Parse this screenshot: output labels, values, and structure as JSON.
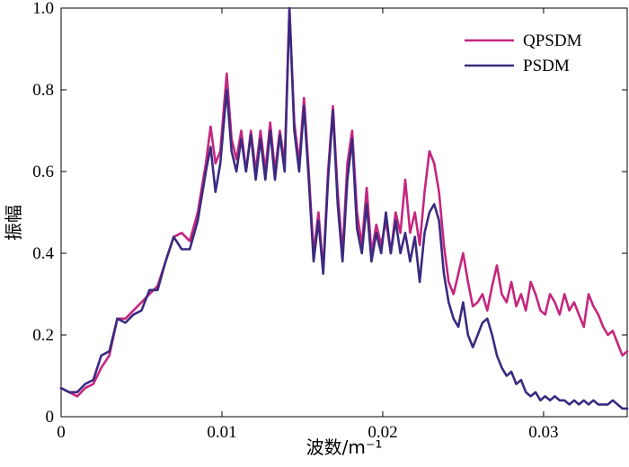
{
  "chart_data": {
    "type": "line",
    "title": "",
    "xlabel": "波数/m⁻¹",
    "ylabel": "振幅",
    "xlim": [
      0,
      0.0352
    ],
    "ylim": [
      0,
      1.0
    ],
    "xticks": [
      0,
      0.01,
      0.02,
      0.03
    ],
    "xtick_labels": [
      "0",
      "0.01",
      "0.02",
      "0.03"
    ],
    "yticks": [
      0,
      0.2,
      0.4,
      0.6,
      0.8,
      1.0
    ],
    "ytick_labels": [
      "0",
      "0.2",
      "0.4",
      "0.6",
      "0.8",
      "1.0"
    ],
    "grid": false,
    "legend_position": "top-right",
    "series": [
      {
        "name": "QPSDM",
        "color": "#c4267f",
        "points": [
          [
            0.0,
            0.07
          ],
          [
            0.0005,
            0.06
          ],
          [
            0.001,
            0.05
          ],
          [
            0.0015,
            0.07
          ],
          [
            0.002,
            0.08
          ],
          [
            0.0025,
            0.12
          ],
          [
            0.003,
            0.15
          ],
          [
            0.0035,
            0.24
          ],
          [
            0.004,
            0.24
          ],
          [
            0.0045,
            0.26
          ],
          [
            0.005,
            0.28
          ],
          [
            0.0055,
            0.3
          ],
          [
            0.006,
            0.32
          ],
          [
            0.0065,
            0.38
          ],
          [
            0.007,
            0.44
          ],
          [
            0.0075,
            0.45
          ],
          [
            0.008,
            0.43
          ],
          [
            0.0085,
            0.5
          ],
          [
            0.009,
            0.62
          ],
          [
            0.0093,
            0.71
          ],
          [
            0.0096,
            0.62
          ],
          [
            0.0099,
            0.65
          ],
          [
            0.0103,
            0.84
          ],
          [
            0.0106,
            0.68
          ],
          [
            0.0109,
            0.63
          ],
          [
            0.0112,
            0.7
          ],
          [
            0.0115,
            0.6
          ],
          [
            0.0118,
            0.7
          ],
          [
            0.0121,
            0.6
          ],
          [
            0.0124,
            0.7
          ],
          [
            0.0127,
            0.6
          ],
          [
            0.013,
            0.72
          ],
          [
            0.0133,
            0.6
          ],
          [
            0.0136,
            0.7
          ],
          [
            0.0139,
            0.62
          ],
          [
            0.0142,
            1.0
          ],
          [
            0.0145,
            0.72
          ],
          [
            0.0148,
            0.62
          ],
          [
            0.0151,
            0.78
          ],
          [
            0.0154,
            0.6
          ],
          [
            0.0157,
            0.4
          ],
          [
            0.016,
            0.5
          ],
          [
            0.0163,
            0.36
          ],
          [
            0.0166,
            0.6
          ],
          [
            0.0169,
            0.76
          ],
          [
            0.0172,
            0.55
          ],
          [
            0.0175,
            0.4
          ],
          [
            0.0178,
            0.62
          ],
          [
            0.0181,
            0.7
          ],
          [
            0.0184,
            0.5
          ],
          [
            0.0187,
            0.42
          ],
          [
            0.019,
            0.56
          ],
          [
            0.0193,
            0.4
          ],
          [
            0.0196,
            0.47
          ],
          [
            0.0199,
            0.42
          ],
          [
            0.0202,
            0.48
          ],
          [
            0.0205,
            0.4
          ],
          [
            0.0208,
            0.5
          ],
          [
            0.0211,
            0.45
          ],
          [
            0.0214,
            0.58
          ],
          [
            0.0217,
            0.45
          ],
          [
            0.022,
            0.5
          ],
          [
            0.0223,
            0.42
          ],
          [
            0.0226,
            0.55
          ],
          [
            0.0229,
            0.65
          ],
          [
            0.0232,
            0.62
          ],
          [
            0.0235,
            0.55
          ],
          [
            0.0238,
            0.42
          ],
          [
            0.0241,
            0.33
          ],
          [
            0.0244,
            0.3
          ],
          [
            0.0247,
            0.35
          ],
          [
            0.025,
            0.4
          ],
          [
            0.0253,
            0.33
          ],
          [
            0.0256,
            0.27
          ],
          [
            0.0259,
            0.28
          ],
          [
            0.0262,
            0.3
          ],
          [
            0.0265,
            0.26
          ],
          [
            0.0268,
            0.32
          ],
          [
            0.0271,
            0.37
          ],
          [
            0.0274,
            0.3
          ],
          [
            0.0277,
            0.28
          ],
          [
            0.028,
            0.33
          ],
          [
            0.0283,
            0.27
          ],
          [
            0.0286,
            0.3
          ],
          [
            0.0289,
            0.26
          ],
          [
            0.0292,
            0.33
          ],
          [
            0.0295,
            0.3
          ],
          [
            0.0298,
            0.26
          ],
          [
            0.0301,
            0.25
          ],
          [
            0.0304,
            0.3
          ],
          [
            0.0307,
            0.28
          ],
          [
            0.031,
            0.25
          ],
          [
            0.0313,
            0.3
          ],
          [
            0.0316,
            0.26
          ],
          [
            0.0319,
            0.28
          ],
          [
            0.0322,
            0.25
          ],
          [
            0.0325,
            0.22
          ],
          [
            0.0328,
            0.3
          ],
          [
            0.0331,
            0.27
          ],
          [
            0.0334,
            0.25
          ],
          [
            0.0337,
            0.22
          ],
          [
            0.034,
            0.2
          ],
          [
            0.0343,
            0.21
          ],
          [
            0.0346,
            0.18
          ],
          [
            0.0349,
            0.15
          ],
          [
            0.0352,
            0.16
          ]
        ]
      },
      {
        "name": "PSDM",
        "color": "#3b2a80",
        "points": [
          [
            0.0,
            0.07
          ],
          [
            0.0005,
            0.06
          ],
          [
            0.001,
            0.06
          ],
          [
            0.0015,
            0.08
          ],
          [
            0.002,
            0.09
          ],
          [
            0.0025,
            0.15
          ],
          [
            0.003,
            0.16
          ],
          [
            0.0035,
            0.24
          ],
          [
            0.004,
            0.23
          ],
          [
            0.0045,
            0.25
          ],
          [
            0.005,
            0.26
          ],
          [
            0.0055,
            0.31
          ],
          [
            0.006,
            0.31
          ],
          [
            0.0065,
            0.38
          ],
          [
            0.007,
            0.44
          ],
          [
            0.0075,
            0.41
          ],
          [
            0.008,
            0.41
          ],
          [
            0.0085,
            0.48
          ],
          [
            0.009,
            0.6
          ],
          [
            0.0093,
            0.66
          ],
          [
            0.0096,
            0.55
          ],
          [
            0.0099,
            0.62
          ],
          [
            0.0103,
            0.8
          ],
          [
            0.0106,
            0.65
          ],
          [
            0.0109,
            0.6
          ],
          [
            0.0112,
            0.68
          ],
          [
            0.0115,
            0.6
          ],
          [
            0.0118,
            0.69
          ],
          [
            0.0121,
            0.58
          ],
          [
            0.0124,
            0.68
          ],
          [
            0.0127,
            0.58
          ],
          [
            0.013,
            0.7
          ],
          [
            0.0133,
            0.58
          ],
          [
            0.0136,
            0.69
          ],
          [
            0.0139,
            0.6
          ],
          [
            0.0142,
            1.0
          ],
          [
            0.0145,
            0.7
          ],
          [
            0.0148,
            0.6
          ],
          [
            0.0151,
            0.76
          ],
          [
            0.0154,
            0.58
          ],
          [
            0.0157,
            0.38
          ],
          [
            0.016,
            0.48
          ],
          [
            0.0163,
            0.35
          ],
          [
            0.0166,
            0.58
          ],
          [
            0.0169,
            0.75
          ],
          [
            0.0172,
            0.52
          ],
          [
            0.0175,
            0.38
          ],
          [
            0.0178,
            0.58
          ],
          [
            0.0181,
            0.68
          ],
          [
            0.0184,
            0.46
          ],
          [
            0.0187,
            0.4
          ],
          [
            0.019,
            0.52
          ],
          [
            0.0193,
            0.38
          ],
          [
            0.0196,
            0.45
          ],
          [
            0.0199,
            0.4
          ],
          [
            0.0202,
            0.5
          ],
          [
            0.0205,
            0.4
          ],
          [
            0.0208,
            0.48
          ],
          [
            0.0211,
            0.4
          ],
          [
            0.0214,
            0.45
          ],
          [
            0.0217,
            0.38
          ],
          [
            0.022,
            0.44
          ],
          [
            0.0223,
            0.33
          ],
          [
            0.0226,
            0.45
          ],
          [
            0.0229,
            0.5
          ],
          [
            0.0232,
            0.52
          ],
          [
            0.0235,
            0.48
          ],
          [
            0.0238,
            0.35
          ],
          [
            0.0241,
            0.28
          ],
          [
            0.0244,
            0.24
          ],
          [
            0.0247,
            0.22
          ],
          [
            0.025,
            0.28
          ],
          [
            0.0253,
            0.2
          ],
          [
            0.0256,
            0.17
          ],
          [
            0.0259,
            0.2
          ],
          [
            0.0262,
            0.23
          ],
          [
            0.0265,
            0.24
          ],
          [
            0.0268,
            0.2
          ],
          [
            0.0271,
            0.15
          ],
          [
            0.0274,
            0.12
          ],
          [
            0.0277,
            0.1
          ],
          [
            0.028,
            0.11
          ],
          [
            0.0283,
            0.08
          ],
          [
            0.0286,
            0.09
          ],
          [
            0.0289,
            0.06
          ],
          [
            0.0292,
            0.05
          ],
          [
            0.0295,
            0.06
          ],
          [
            0.0298,
            0.04
          ],
          [
            0.0301,
            0.05
          ],
          [
            0.0304,
            0.04
          ],
          [
            0.0307,
            0.05
          ],
          [
            0.031,
            0.04
          ],
          [
            0.0313,
            0.04
          ],
          [
            0.0316,
            0.03
          ],
          [
            0.0319,
            0.04
          ],
          [
            0.0322,
            0.03
          ],
          [
            0.0325,
            0.04
          ],
          [
            0.0328,
            0.03
          ],
          [
            0.0331,
            0.04
          ],
          [
            0.0334,
            0.03
          ],
          [
            0.0337,
            0.03
          ],
          [
            0.034,
            0.03
          ],
          [
            0.0343,
            0.04
          ],
          [
            0.0346,
            0.03
          ],
          [
            0.0349,
            0.02
          ],
          [
            0.0352,
            0.02
          ]
        ]
      }
    ]
  }
}
